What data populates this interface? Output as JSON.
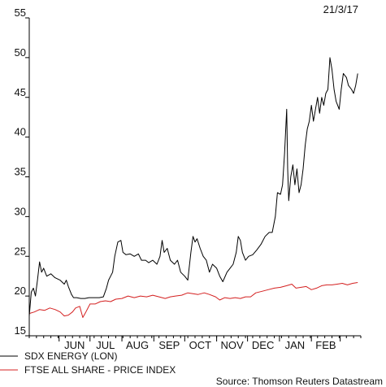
{
  "date_label": "21/3/17",
  "source": "Source: Thomson Reuters Datastream",
  "colors": {
    "sdx": "#000000",
    "ftse": "#d42020",
    "axis": "#000000"
  },
  "chart_data": {
    "type": "line",
    "ylim": [
      15,
      55
    ],
    "yticks": [
      15,
      20,
      25,
      30,
      35,
      40,
      45,
      50,
      55
    ],
    "x_range": [
      "2016-05-03",
      "2017-03-21"
    ],
    "month_labels": [
      {
        "label": "JUN",
        "date": "2016-06-16"
      },
      {
        "label": "JUL",
        "date": "2016-07-16"
      },
      {
        "label": "AUG",
        "date": "2016-08-16"
      },
      {
        "label": "SEP",
        "date": "2016-09-16"
      },
      {
        "label": "OCT",
        "date": "2016-10-16"
      },
      {
        "label": "NOV",
        "date": "2016-11-16"
      },
      {
        "label": "DEC",
        "date": "2016-12-16"
      },
      {
        "label": "JAN",
        "date": "2017-01-16"
      },
      {
        "label": "FEB",
        "date": "2017-02-15"
      }
    ],
    "month_ticks": [
      "2016-06-01",
      "2016-07-01",
      "2016-08-01",
      "2016-09-01",
      "2016-10-01",
      "2016-11-01",
      "2016-12-01",
      "2017-01-01",
      "2017-02-01",
      "2017-03-01"
    ],
    "series": [
      {
        "name": "SDX ENERGY (LON)",
        "color": "#000000",
        "points": [
          [
            "2016-05-03",
            17.5
          ],
          [
            "2016-05-05",
            20.5
          ],
          [
            "2016-05-07",
            21.0
          ],
          [
            "2016-05-09",
            20.0
          ],
          [
            "2016-05-11",
            22.0
          ],
          [
            "2016-05-13",
            24.3
          ],
          [
            "2016-05-15",
            23.0
          ],
          [
            "2016-05-17",
            23.5
          ],
          [
            "2016-05-20",
            22.5
          ],
          [
            "2016-05-24",
            22.8
          ],
          [
            "2016-05-28",
            22.3
          ],
          [
            "2016-06-02",
            22.0
          ],
          [
            "2016-06-06",
            21.5
          ],
          [
            "2016-06-08",
            22.0
          ],
          [
            "2016-06-10",
            21.2
          ],
          [
            "2016-06-13",
            20.2
          ],
          [
            "2016-06-15",
            19.8
          ],
          [
            "2016-06-18",
            19.8
          ],
          [
            "2016-06-22",
            19.7
          ],
          [
            "2016-06-26",
            19.7
          ],
          [
            "2016-06-30",
            19.8
          ],
          [
            "2016-07-05",
            19.8
          ],
          [
            "2016-07-10",
            19.8
          ],
          [
            "2016-07-14",
            19.9
          ],
          [
            "2016-07-17",
            21.0
          ],
          [
            "2016-07-19",
            22.0
          ],
          [
            "2016-07-21",
            22.5
          ],
          [
            "2016-07-23",
            23.0
          ],
          [
            "2016-07-25",
            25.0
          ],
          [
            "2016-07-28",
            26.8
          ],
          [
            "2016-07-31",
            27.0
          ],
          [
            "2016-08-02",
            25.5
          ],
          [
            "2016-08-05",
            25.2
          ],
          [
            "2016-08-09",
            25.3
          ],
          [
            "2016-08-13",
            25.0
          ],
          [
            "2016-08-17",
            25.3
          ],
          [
            "2016-08-20",
            24.5
          ],
          [
            "2016-08-24",
            24.5
          ],
          [
            "2016-08-27",
            24.2
          ],
          [
            "2016-08-31",
            24.5
          ],
          [
            "2016-09-04",
            24.0
          ],
          [
            "2016-09-07",
            25.0
          ],
          [
            "2016-09-09",
            27.0
          ],
          [
            "2016-09-11",
            25.5
          ],
          [
            "2016-09-14",
            26.0
          ],
          [
            "2016-09-17",
            24.5
          ],
          [
            "2016-09-21",
            24.0
          ],
          [
            "2016-09-24",
            24.5
          ],
          [
            "2016-09-27",
            23.0
          ],
          [
            "2016-10-01",
            22.5
          ],
          [
            "2016-10-04",
            22.0
          ],
          [
            "2016-10-07",
            25.5
          ],
          [
            "2016-10-09",
            27.5
          ],
          [
            "2016-10-11",
            26.8
          ],
          [
            "2016-10-13",
            27.2
          ],
          [
            "2016-10-16",
            26.0
          ],
          [
            "2016-10-19",
            25.0
          ],
          [
            "2016-10-22",
            24.5
          ],
          [
            "2016-10-25",
            23.0
          ],
          [
            "2016-10-28",
            24.0
          ],
          [
            "2016-11-01",
            23.5
          ],
          [
            "2016-11-04",
            22.5
          ],
          [
            "2016-11-07",
            21.8
          ],
          [
            "2016-11-11",
            23.0
          ],
          [
            "2016-11-14",
            23.5
          ],
          [
            "2016-11-17",
            24.0
          ],
          [
            "2016-11-20",
            25.5
          ],
          [
            "2016-11-22",
            27.5
          ],
          [
            "2016-11-24",
            27.0
          ],
          [
            "2016-11-26",
            25.5
          ],
          [
            "2016-11-29",
            24.5
          ],
          [
            "2016-12-02",
            25.0
          ],
          [
            "2016-12-06",
            25.2
          ],
          [
            "2016-12-10",
            25.8
          ],
          [
            "2016-12-14",
            26.5
          ],
          [
            "2016-12-18",
            27.5
          ],
          [
            "2016-12-22",
            28.0
          ],
          [
            "2016-12-25",
            28.0
          ],
          [
            "2016-12-28",
            30.0
          ],
          [
            "2016-12-30",
            33.0
          ],
          [
            "2017-01-02",
            32.8
          ],
          [
            "2017-01-04",
            34.0
          ],
          [
            "2017-01-06",
            38.0
          ],
          [
            "2017-01-08",
            43.5
          ],
          [
            "2017-01-09",
            36.0
          ],
          [
            "2017-01-10",
            32.0
          ],
          [
            "2017-01-12",
            35.0
          ],
          [
            "2017-01-14",
            36.5
          ],
          [
            "2017-01-16",
            34.0
          ],
          [
            "2017-01-18",
            36.0
          ],
          [
            "2017-01-20",
            33.0
          ],
          [
            "2017-01-22",
            34.0
          ],
          [
            "2017-01-24",
            36.0
          ],
          [
            "2017-01-26",
            39.0
          ],
          [
            "2017-01-28",
            41.0
          ],
          [
            "2017-01-30",
            42.0
          ],
          [
            "2017-02-01",
            44.0
          ],
          [
            "2017-02-03",
            42.0
          ],
          [
            "2017-02-05",
            43.5
          ],
          [
            "2017-02-07",
            45.0
          ],
          [
            "2017-02-09",
            43.0
          ],
          [
            "2017-02-11",
            45.0
          ],
          [
            "2017-02-13",
            44.0
          ],
          [
            "2017-02-15",
            45.5
          ],
          [
            "2017-02-17",
            46.0
          ],
          [
            "2017-02-19",
            50.0
          ],
          [
            "2017-02-21",
            48.5
          ],
          [
            "2017-02-23",
            46.0
          ],
          [
            "2017-02-25",
            44.5
          ],
          [
            "2017-02-28",
            43.5
          ],
          [
            "2017-03-02",
            46.0
          ],
          [
            "2017-03-04",
            48.0
          ],
          [
            "2017-03-07",
            47.5
          ],
          [
            "2017-03-09",
            46.5
          ],
          [
            "2017-03-12",
            46.0
          ],
          [
            "2017-03-14",
            45.5
          ],
          [
            "2017-03-16",
            46.5
          ],
          [
            "2017-03-18",
            48.0
          ]
        ]
      },
      {
        "name": "FTSE ALL SHARE - PRICE INDEX",
        "color": "#d42020",
        "points": [
          [
            "2016-05-03",
            17.8
          ],
          [
            "2016-05-08",
            18.0
          ],
          [
            "2016-05-13",
            18.3
          ],
          [
            "2016-05-18",
            18.2
          ],
          [
            "2016-05-23",
            18.5
          ],
          [
            "2016-05-28",
            18.3
          ],
          [
            "2016-06-02",
            18.0
          ],
          [
            "2016-06-06",
            17.5
          ],
          [
            "2016-06-10",
            17.6
          ],
          [
            "2016-06-14",
            18.0
          ],
          [
            "2016-06-17",
            18.5
          ],
          [
            "2016-06-21",
            18.7
          ],
          [
            "2016-06-24",
            17.3
          ],
          [
            "2016-06-27",
            18.0
          ],
          [
            "2016-07-01",
            19.0
          ],
          [
            "2016-07-06",
            19.0
          ],
          [
            "2016-07-11",
            19.3
          ],
          [
            "2016-07-16",
            19.4
          ],
          [
            "2016-07-21",
            19.3
          ],
          [
            "2016-07-26",
            19.6
          ],
          [
            "2016-08-01",
            19.7
          ],
          [
            "2016-08-07",
            20.0
          ],
          [
            "2016-08-13",
            19.8
          ],
          [
            "2016-08-19",
            20.0
          ],
          [
            "2016-08-25",
            19.9
          ],
          [
            "2016-08-31",
            20.1
          ],
          [
            "2016-09-06",
            19.9
          ],
          [
            "2016-09-12",
            19.7
          ],
          [
            "2016-09-17",
            19.9
          ],
          [
            "2016-09-22",
            20.0
          ],
          [
            "2016-09-28",
            20.1
          ],
          [
            "2016-10-04",
            20.4
          ],
          [
            "2016-10-09",
            20.3
          ],
          [
            "2016-10-14",
            20.2
          ],
          [
            "2016-10-20",
            20.4
          ],
          [
            "2016-10-25",
            20.2
          ],
          [
            "2016-10-31",
            19.9
          ],
          [
            "2016-11-04",
            19.5
          ],
          [
            "2016-11-09",
            19.8
          ],
          [
            "2016-11-14",
            19.7
          ],
          [
            "2016-11-19",
            19.8
          ],
          [
            "2016-11-24",
            19.7
          ],
          [
            "2016-11-29",
            19.9
          ],
          [
            "2016-12-04",
            19.9
          ],
          [
            "2016-12-09",
            20.4
          ],
          [
            "2016-12-15",
            20.6
          ],
          [
            "2016-12-21",
            20.8
          ],
          [
            "2016-12-27",
            21.0
          ],
          [
            "2017-01-02",
            21.1
          ],
          [
            "2017-01-08",
            21.3
          ],
          [
            "2017-01-13",
            21.5
          ],
          [
            "2017-01-17",
            21.0
          ],
          [
            "2017-01-22",
            21.1
          ],
          [
            "2017-01-27",
            21.2
          ],
          [
            "2017-02-01",
            20.8
          ],
          [
            "2017-02-06",
            21.0
          ],
          [
            "2017-02-11",
            21.3
          ],
          [
            "2017-02-16",
            21.4
          ],
          [
            "2017-02-21",
            21.4
          ],
          [
            "2017-02-26",
            21.5
          ],
          [
            "2017-03-03",
            21.6
          ],
          [
            "2017-03-08",
            21.4
          ],
          [
            "2017-03-13",
            21.6
          ],
          [
            "2017-03-18",
            21.7
          ]
        ]
      }
    ]
  }
}
